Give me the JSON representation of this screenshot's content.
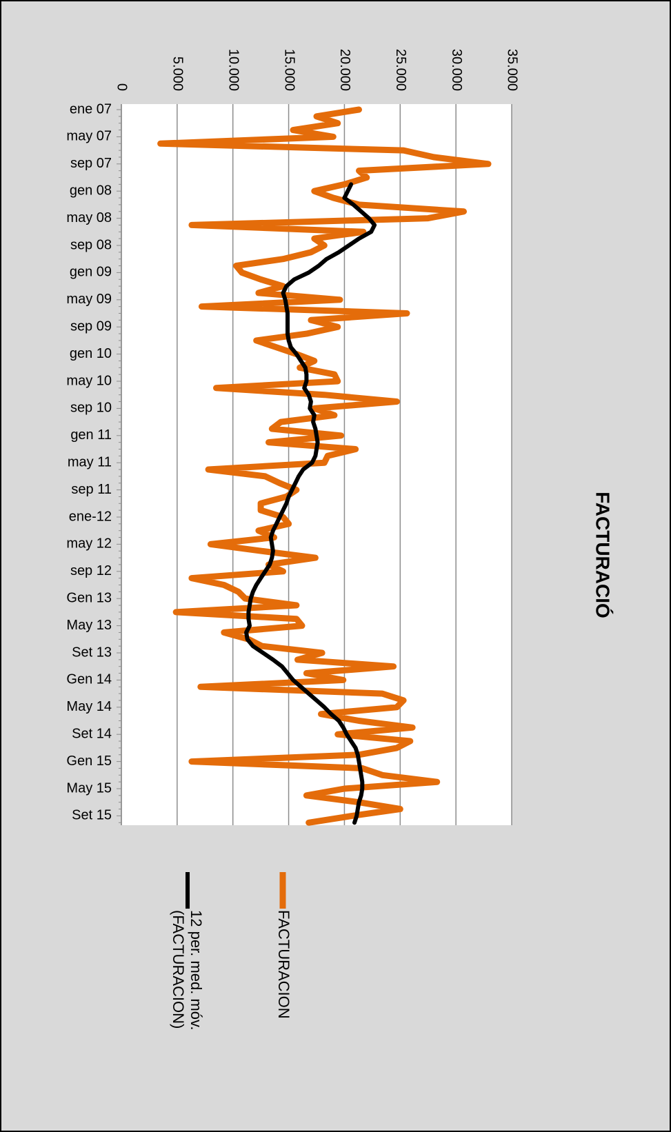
{
  "chart_data": {
    "type": "line",
    "title": "FACTURACIÓ",
    "categories": [
      "ene 07",
      null,
      null,
      null,
      "may 07",
      null,
      null,
      null,
      "sep 07",
      null,
      null,
      null,
      "gen 08",
      null,
      null,
      null,
      "may 08",
      null,
      null,
      null,
      "sep 08",
      null,
      null,
      null,
      "gen 09",
      null,
      null,
      null,
      "may 09",
      null,
      null,
      null,
      "sep 09",
      null,
      null,
      null,
      "gen 10",
      null,
      null,
      null,
      "may 10",
      null,
      null,
      null,
      "sep 10",
      null,
      null,
      null,
      "gen 11",
      null,
      null,
      null,
      "may 11",
      null,
      null,
      null,
      "sep 11",
      null,
      null,
      null,
      "ene-12",
      null,
      null,
      null,
      "may 12",
      null,
      null,
      null,
      "sep 12",
      null,
      null,
      null,
      "Gen 13",
      null,
      null,
      null,
      "May 13",
      null,
      null,
      null,
      "Set 13",
      null,
      null,
      null,
      "Gen 14",
      null,
      null,
      null,
      "May 14",
      null,
      null,
      null,
      "Set 14",
      null,
      null,
      null,
      "Gen 15",
      null,
      null,
      null,
      "May 15",
      null,
      null,
      null,
      "Set 15",
      null
    ],
    "series": [
      {
        "name": "FACTURACION",
        "color": "#e46c0a",
        "values": [
          21300,
          17500,
          19400,
          15400,
          19000,
          3500,
          25300,
          28000,
          32900,
          21300,
          22000,
          20000,
          17300,
          19000,
          21300,
          30700,
          27500,
          6300,
          21700,
          17300,
          18200,
          17000,
          14500,
          10300,
          10800,
          12500,
          14500,
          12300,
          19600,
          7200,
          25600,
          17000,
          19400,
          16600,
          12100,
          13900,
          15700,
          17300,
          16000,
          19100,
          19400,
          8500,
          18200,
          24700,
          17300,
          19100,
          14300,
          13500,
          19700,
          13200,
          21000,
          18500,
          18200,
          7800,
          12900,
          14200,
          15700,
          14800,
          12500,
          12500,
          14500,
          15000,
          12300,
          13700,
          8000,
          12600,
          17400,
          13200,
          14500,
          6300,
          9200,
          10500,
          11100,
          15700,
          4900,
          15700,
          16200,
          9200,
          11400,
          12600,
          18000,
          15800,
          24400,
          16600,
          19900,
          7100,
          23400,
          25300,
          24700,
          17900,
          21300,
          26100,
          19400,
          25900,
          24700,
          21300,
          6300,
          21600,
          23400,
          28300,
          20000,
          16600,
          21300,
          25000,
          20700,
          16800
        ]
      },
      {
        "name": "12 per. med. móv. (FACTURACION)",
        "color": "#000000",
        "values": [
          null,
          null,
          null,
          null,
          null,
          null,
          null,
          null,
          null,
          null,
          null,
          20600,
          20300,
          20000,
          20800,
          21500,
          22200,
          22700,
          22400,
          21300,
          20400,
          19500,
          18400,
          17700,
          16800,
          15500,
          14800,
          14500,
          14700,
          14800,
          14900,
          14900,
          14900,
          14900,
          15000,
          15200,
          15700,
          16100,
          16500,
          16600,
          16600,
          16400,
          16800,
          17000,
          16900,
          17300,
          17200,
          17400,
          17500,
          17600,
          17500,
          17400,
          17100,
          16300,
          15900,
          15600,
          15300,
          15000,
          14800,
          14500,
          14200,
          13900,
          13600,
          13400,
          13500,
          13600,
          13500,
          13300,
          12900,
          12500,
          12100,
          11800,
          11600,
          11500,
          11400,
          11400,
          11500,
          11200,
          11300,
          11800,
          12700,
          13600,
          14400,
          14900,
          15400,
          16100,
          16800,
          17500,
          18200,
          18800,
          19500,
          19900,
          20200,
          20600,
          21000,
          21200,
          21300,
          21400,
          21500,
          21600,
          21600,
          21500,
          21300,
          21200,
          21100,
          20900
        ]
      }
    ],
    "ylim": [
      0,
      35000
    ],
    "yticks": [
      0,
      {
        "value": 5000,
        "label": "5.000"
      },
      {
        "value": 10000,
        "label": "10.000"
      },
      {
        "value": 15000,
        "label": "15.000"
      },
      {
        "value": 20000,
        "label": "20.000"
      },
      {
        "value": 25000,
        "label": "25.000"
      },
      {
        "value": 30000,
        "label": "30.000"
      },
      {
        "value": 35000,
        "label": "35.000"
      }
    ],
    "grid": true
  }
}
